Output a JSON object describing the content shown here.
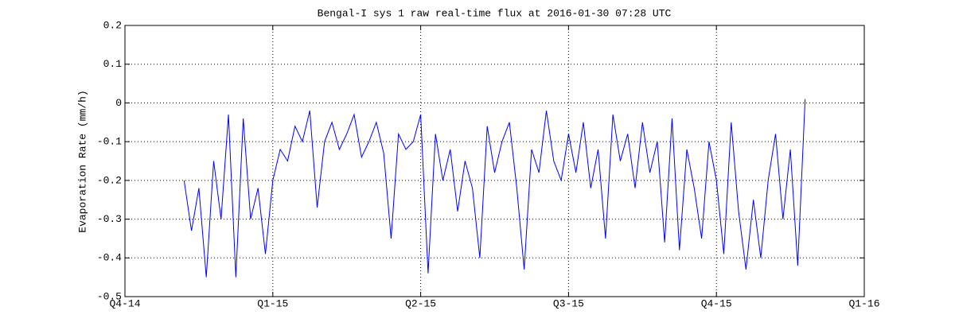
{
  "chart_data": {
    "type": "line",
    "title": "Bengal-I sys 1 raw real-time flux at 2016-01-30 07:28 UTC",
    "y_label": "Evaporation Rate (mm/h)",
    "x": [
      0.4,
      0.45,
      0.5,
      0.55,
      0.6,
      0.65,
      0.7,
      0.75,
      0.8,
      0.85,
      0.9,
      0.95,
      1.0,
      1.05,
      1.1,
      1.15,
      1.2,
      1.25,
      1.3,
      1.35,
      1.4,
      1.45,
      1.5,
      1.55,
      1.6,
      1.65,
      1.7,
      1.75,
      1.8,
      1.85,
      1.9,
      1.95,
      2.0,
      2.05,
      2.1,
      2.15,
      2.2,
      2.25,
      2.3,
      2.35,
      2.4,
      2.45,
      2.5,
      2.55,
      2.6,
      2.65,
      2.7,
      2.75,
      2.8,
      2.85,
      2.9,
      2.95,
      3.0,
      3.05,
      3.1,
      3.15,
      3.2,
      3.25,
      3.3,
      3.35,
      3.4,
      3.45,
      3.5,
      3.55,
      3.6,
      3.65,
      3.7,
      3.75,
      3.8,
      3.85,
      3.9,
      3.95,
      4.0,
      4.05,
      4.1,
      4.15,
      4.2,
      4.25,
      4.3,
      4.35,
      4.4,
      4.45,
      4.5,
      4.55,
      4.6
    ],
    "series": [
      {
        "color": "#0000ff",
        "values": [
          -0.2,
          -0.33,
          -0.22,
          -0.45,
          -0.15,
          -0.3,
          -0.03,
          -0.45,
          -0.04,
          -0.3,
          -0.22,
          -0.39,
          -0.2,
          -0.12,
          -0.15,
          -0.06,
          -0.1,
          -0.02,
          -0.27,
          -0.1,
          -0.05,
          -0.12,
          -0.08,
          -0.03,
          -0.14,
          -0.1,
          -0.05,
          -0.13,
          -0.35,
          -0.08,
          -0.12,
          -0.1,
          -0.03,
          -0.44,
          -0.08,
          -0.2,
          -0.12,
          -0.28,
          -0.15,
          -0.22,
          -0.4,
          -0.06,
          -0.18,
          -0.1,
          -0.05,
          -0.22,
          -0.43,
          -0.12,
          -0.18,
          -0.02,
          -0.15,
          -0.2,
          -0.08,
          -0.18,
          -0.05,
          -0.22,
          -0.12,
          -0.35,
          -0.03,
          -0.15,
          -0.08,
          -0.22,
          -0.05,
          -0.18,
          -0.1,
          -0.36,
          -0.04,
          -0.38,
          -0.12,
          -0.22,
          -0.35,
          -0.1,
          -0.2,
          -0.39,
          -0.05,
          -0.28,
          -0.43,
          -0.25,
          -0.4,
          -0.2,
          -0.08,
          -0.3,
          -0.12,
          -0.42,
          0.01
        ]
      }
    ],
    "xlim": [
      0,
      5
    ],
    "xticks": [
      {
        "value": 0,
        "label": "Q4-14"
      },
      {
        "value": 1,
        "label": "Q1-15"
      },
      {
        "value": 2,
        "label": "Q2-15"
      },
      {
        "value": 3,
        "label": "Q3-15"
      },
      {
        "value": 4,
        "label": "Q4-15"
      },
      {
        "value": 5,
        "label": "Q1-16"
      }
    ],
    "ylim": [
      -0.5,
      0.2
    ],
    "yticks": [
      -0.5,
      -0.4,
      -0.3,
      -0.2,
      -0.1,
      0,
      0.1,
      0.2
    ],
    "grid": true
  }
}
